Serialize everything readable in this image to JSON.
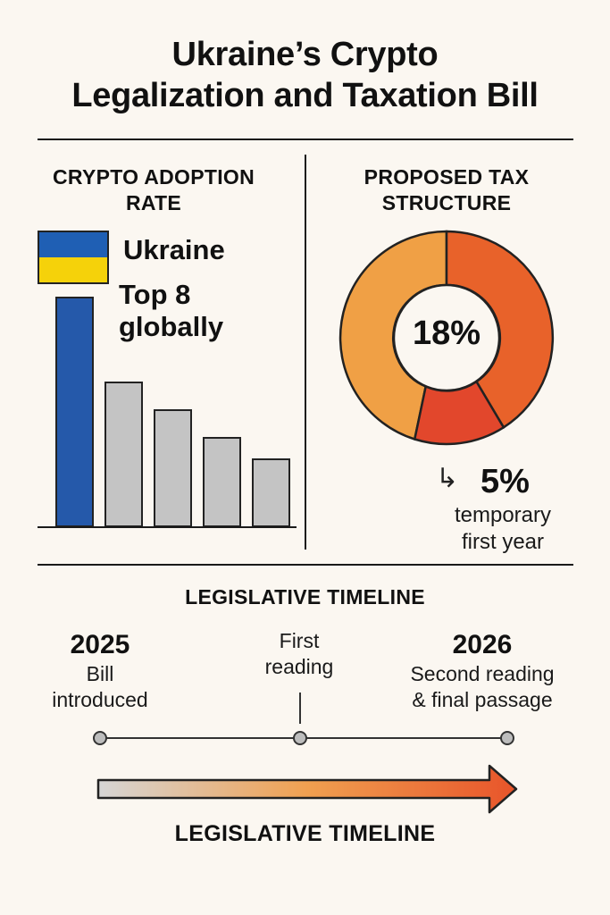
{
  "title": {
    "line1": "Ukraine’s Crypto",
    "line2": "Legalization and Taxation Bill"
  },
  "adoption": {
    "heading_line1": "CRYPTO ADOPTION",
    "heading_line2": "RATE",
    "country": "Ukraine",
    "rank_line1": "Top 8",
    "rank_line2": "globally",
    "flag_colors": [
      "#1f5fb4",
      "#f5d20a"
    ],
    "highlight_color": "#2559aa",
    "other_color": "#c4c4c4",
    "bar_levels": [
      1.0,
      0.63,
      0.51,
      0.39,
      0.3
    ]
  },
  "tax": {
    "heading_line1": "PROPOSED TAX",
    "heading_line2": "STRUCTURE",
    "main_rate": "18%",
    "temp_rate": "5%",
    "temp_desc_line1": "temporary",
    "temp_desc_line2": "first year",
    "arrow_glyph": "↳",
    "segment_colors": [
      "#f0a045",
      "#e8622a",
      "#e2472c"
    ]
  },
  "timeline": {
    "heading": "LEGISLATIVE TIMELINE",
    "points": [
      {
        "year": "2025",
        "line1": "Bill",
        "line2": "introduced"
      },
      {
        "year": "",
        "line1": "First",
        "line2": "reading"
      },
      {
        "year": "2026",
        "line1": "Second reading",
        "line2": "& final passage"
      }
    ],
    "arrow_label": "LEGISLATIVE TIMELINE",
    "arrow_gradient": [
      "#d6d6d6",
      "#f0a050",
      "#e8542a"
    ]
  }
}
